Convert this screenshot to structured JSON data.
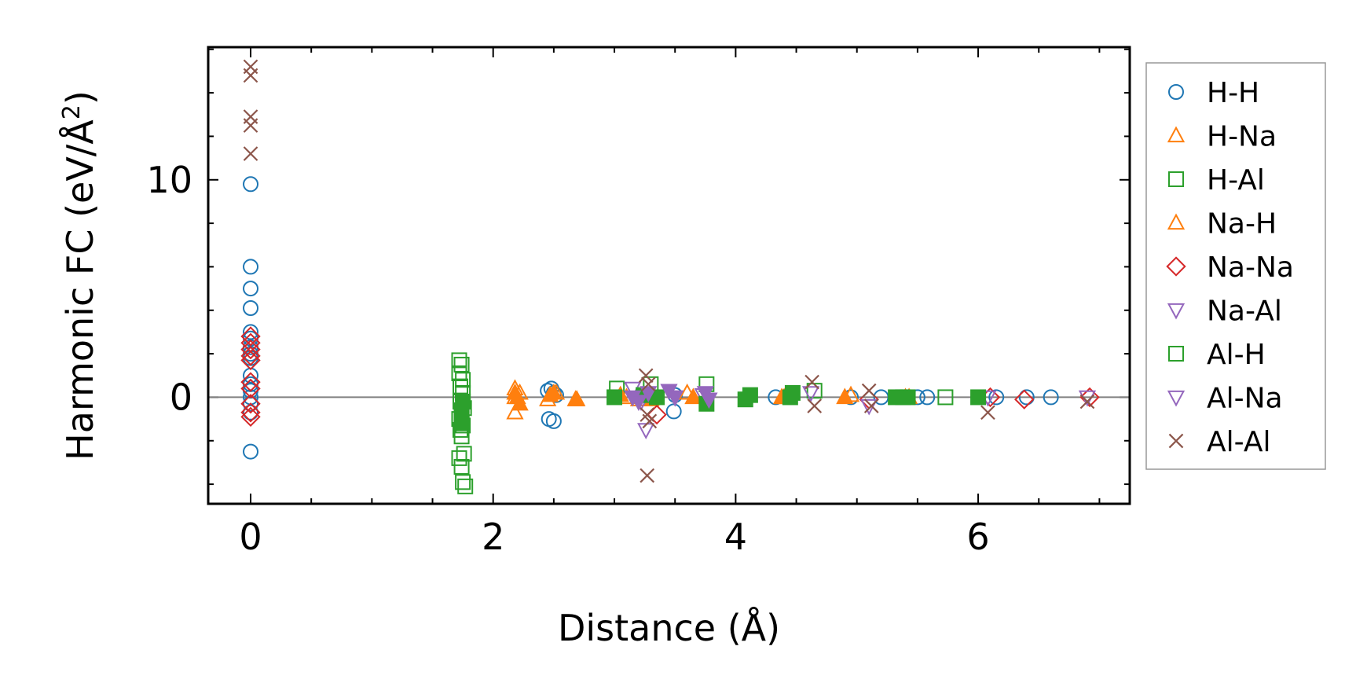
{
  "chart_data": {
    "type": "scatter",
    "xlabel": "Distance (Å)",
    "ylabel": "Harmonic FC (eV/Å²)",
    "ylabel_base": "Harmonic FC (eV/Å",
    "ylabel_sup": "2",
    "ylabel_close": ")",
    "xlim": [
      -0.35,
      7.25
    ],
    "ylim": [
      -4.9,
      16.1
    ],
    "xticks": [
      0,
      2,
      4,
      6
    ],
    "xtick_labels": [
      "0",
      "2",
      "4",
      "6"
    ],
    "yticks": [
      0,
      10
    ],
    "ytick_labels": [
      "0",
      "10"
    ],
    "x_minor_step": 0.5,
    "y_minor_step": 2,
    "zero_line": true,
    "grid": false,
    "legend_position": "outside-right",
    "series": [
      {
        "name": "H-H",
        "marker": "circle",
        "color": "#1f77b4",
        "filled": false,
        "points": [
          [
            0,
            9.8
          ],
          [
            0,
            6.0
          ],
          [
            0,
            5.0
          ],
          [
            0,
            4.1
          ],
          [
            0,
            3.0
          ],
          [
            0,
            2.7
          ],
          [
            0,
            2.3
          ],
          [
            0,
            2.0
          ],
          [
            0,
            1.8
          ],
          [
            0,
            1.0
          ],
          [
            0,
            0.6
          ],
          [
            0,
            0.3
          ],
          [
            0,
            0.0
          ],
          [
            0,
            -0.3
          ],
          [
            0,
            -0.7
          ],
          [
            0,
            -2.5
          ],
          [
            2.45,
            0.3
          ],
          [
            2.48,
            0.4
          ],
          [
            2.5,
            0.2
          ],
          [
            2.52,
            0.1
          ],
          [
            2.46,
            -1.0
          ],
          [
            2.5,
            -1.1
          ],
          [
            3.49,
            -0.65
          ],
          [
            3.5,
            0.1
          ],
          [
            4.33,
            0.0
          ],
          [
            4.95,
            0.0
          ],
          [
            5.2,
            0.0
          ],
          [
            5.5,
            0.0
          ],
          [
            5.58,
            0.0
          ],
          [
            6.15,
            0.0
          ],
          [
            6.4,
            0.0
          ],
          [
            6.6,
            0.0
          ]
        ]
      },
      {
        "name": "H-Na",
        "marker": "triangle-up",
        "color": "#ff7f0e",
        "filled": false,
        "points": [
          [
            2.18,
            0.4
          ],
          [
            2.18,
            0.0
          ],
          [
            2.18,
            -0.7
          ],
          [
            2.22,
            0.2
          ],
          [
            2.45,
            -0.1
          ],
          [
            2.52,
            0.2
          ],
          [
            2.69,
            -0.1
          ],
          [
            3.1,
            0.0
          ],
          [
            3.2,
            -0.1
          ],
          [
            3.6,
            0.2
          ],
          [
            4.4,
            0.0
          ],
          [
            4.95,
            0.1
          ],
          [
            5.4,
            0.0
          ]
        ]
      },
      {
        "name": "H-Al",
        "marker": "square",
        "color": "#2ca02c",
        "filled": false,
        "points": [
          [
            1.72,
            1.7
          ],
          [
            1.74,
            1.5
          ],
          [
            1.72,
            1.1
          ],
          [
            1.75,
            0.8
          ],
          [
            1.73,
            0.5
          ],
          [
            1.75,
            0.2
          ],
          [
            1.73,
            -0.2
          ],
          [
            1.76,
            -0.5
          ],
          [
            1.74,
            -0.8
          ],
          [
            1.72,
            -1.0
          ],
          [
            1.75,
            -1.3
          ],
          [
            1.73,
            -1.5
          ],
          [
            1.74,
            -1.8
          ],
          [
            1.72,
            -2.8
          ],
          [
            1.76,
            -2.6
          ],
          [
            1.74,
            -3.2
          ],
          [
            1.75,
            -3.9
          ],
          [
            1.77,
            -4.1
          ],
          [
            3.02,
            0.4
          ],
          [
            3.3,
            0.6
          ],
          [
            3.76,
            0.6
          ],
          [
            4.65,
            0.3
          ],
          [
            5.73,
            0.0
          ]
        ]
      },
      {
        "name": "Na-H",
        "marker": "triangle-up",
        "color": "#ff7f0e",
        "filled": true,
        "points": [
          [
            2.18,
            0.2
          ],
          [
            2.2,
            0.0
          ],
          [
            2.22,
            -0.3
          ],
          [
            2.47,
            0.1
          ],
          [
            2.5,
            0.2
          ],
          [
            2.68,
            -0.1
          ],
          [
            3.05,
            0.1
          ],
          [
            3.3,
            -0.1
          ],
          [
            3.65,
            0.0
          ],
          [
            4.38,
            0.0
          ],
          [
            4.9,
            0.0
          ],
          [
            5.43,
            0.0
          ]
        ]
      },
      {
        "name": "Na-Na",
        "marker": "diamond",
        "color": "#d62728",
        "filled": false,
        "points": [
          [
            0,
            2.8
          ],
          [
            0,
            2.5
          ],
          [
            0,
            2.2
          ],
          [
            0,
            1.9
          ],
          [
            0,
            1.7
          ],
          [
            0,
            0.7
          ],
          [
            0,
            0.4
          ],
          [
            0,
            -0.3
          ],
          [
            0,
            -0.7
          ],
          [
            0,
            -0.9
          ],
          [
            3.35,
            -0.8
          ],
          [
            5.1,
            -0.1
          ],
          [
            6.1,
            0.0
          ],
          [
            6.38,
            -0.1
          ],
          [
            6.92,
            0.0
          ]
        ]
      },
      {
        "name": "Na-Al",
        "marker": "triangle-down",
        "color": "#9467bd",
        "filled": false,
        "points": [
          [
            3.15,
            0.4
          ],
          [
            3.22,
            -0.2
          ],
          [
            3.26,
            -1.5
          ],
          [
            3.5,
            0.0
          ],
          [
            3.73,
            0.1
          ],
          [
            4.62,
            0.2
          ],
          [
            5.1,
            -0.4
          ],
          [
            6.08,
            0.0
          ],
          [
            6.9,
            0.0
          ]
        ]
      },
      {
        "name": "Al-H",
        "marker": "square",
        "color": "#2ca02c",
        "filled": true,
        "points": [
          [
            1.74,
            -1.2
          ],
          [
            1.74,
            -0.6
          ],
          [
            1.75,
            -0.2
          ],
          [
            3.0,
            0.0
          ],
          [
            3.24,
            0.1
          ],
          [
            3.35,
            0.0
          ],
          [
            3.76,
            -0.3
          ],
          [
            4.08,
            -0.1
          ],
          [
            4.12,
            0.1
          ],
          [
            4.45,
            0.0
          ],
          [
            4.47,
            0.2
          ],
          [
            5.32,
            0.0
          ],
          [
            5.38,
            0.0
          ],
          [
            5.42,
            0.0
          ],
          [
            6.0,
            0.0
          ]
        ]
      },
      {
        "name": "Al-Na",
        "marker": "triangle-down",
        "color": "#9467bd",
        "filled": true,
        "points": [
          [
            3.15,
            0.0
          ],
          [
            3.2,
            -0.2
          ],
          [
            3.28,
            0.2
          ],
          [
            3.45,
            0.3
          ],
          [
            3.5,
            0.0
          ],
          [
            3.75,
            0.2
          ],
          [
            3.78,
            -0.1
          ]
        ]
      },
      {
        "name": "Al-Al",
        "marker": "x",
        "color": "#8c564b",
        "filled": false,
        "points": [
          [
            0,
            15.2
          ],
          [
            0,
            14.8
          ],
          [
            0,
            12.9
          ],
          [
            0,
            12.5
          ],
          [
            0,
            11.2
          ],
          [
            3.26,
            1.0
          ],
          [
            3.28,
            0.6
          ],
          [
            3.27,
            -0.8
          ],
          [
            3.29,
            -1.1
          ],
          [
            3.27,
            -3.6
          ],
          [
            4.63,
            0.7
          ],
          [
            4.65,
            -0.4
          ],
          [
            5.1,
            0.3
          ],
          [
            5.12,
            -0.4
          ],
          [
            6.08,
            -0.7
          ],
          [
            6.9,
            -0.2
          ]
        ]
      }
    ]
  }
}
